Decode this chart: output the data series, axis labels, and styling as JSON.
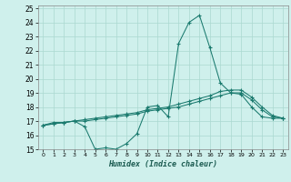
{
  "xlabel": "Humidex (Indice chaleur)",
  "bg_color": "#cff0ec",
  "grid_color": "#aad8d0",
  "line_color": "#1a7a6e",
  "xlim": [
    -0.5,
    23.5
  ],
  "ylim": [
    15,
    25.2
  ],
  "xticks": [
    0,
    1,
    2,
    3,
    4,
    5,
    6,
    7,
    8,
    9,
    10,
    11,
    12,
    13,
    14,
    15,
    16,
    17,
    18,
    19,
    20,
    21,
    22,
    23
  ],
  "yticks": [
    15,
    16,
    17,
    18,
    19,
    20,
    21,
    22,
    23,
    24,
    25
  ],
  "series": [
    [
      16.7,
      16.9,
      16.9,
      17.0,
      16.6,
      15.0,
      15.1,
      15.0,
      15.4,
      16.1,
      18.0,
      18.1,
      17.3,
      22.5,
      24.0,
      24.5,
      22.2,
      19.7,
      19.0,
      18.9,
      18.0,
      17.3,
      17.2,
      17.2
    ],
    [
      16.7,
      16.8,
      16.9,
      17.0,
      17.0,
      17.1,
      17.2,
      17.3,
      17.4,
      17.5,
      17.7,
      17.8,
      17.9,
      18.0,
      18.2,
      18.4,
      18.6,
      18.8,
      19.0,
      19.0,
      18.5,
      17.8,
      17.3,
      17.2
    ],
    [
      16.7,
      16.8,
      16.9,
      17.0,
      17.1,
      17.2,
      17.3,
      17.4,
      17.5,
      17.6,
      17.8,
      17.9,
      18.0,
      18.2,
      18.4,
      18.6,
      18.8,
      19.1,
      19.2,
      19.2,
      18.7,
      18.0,
      17.4,
      17.2
    ]
  ]
}
